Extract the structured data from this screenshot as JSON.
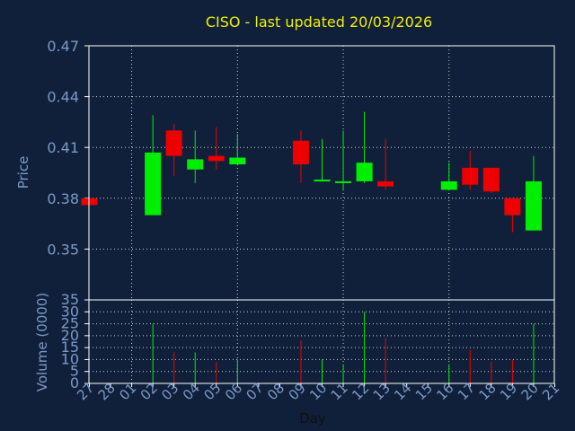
{
  "colors": {
    "background": "#10203a",
    "axis_text": "#7c9ac6",
    "title": "#f0f000",
    "frame": "#ffffff",
    "grid": "#d0d0d0",
    "up": "#00ee00",
    "down": "#ee0000",
    "xlabel": "#101010"
  },
  "chart_data": {
    "type": "candlestick",
    "title": "CISO - last updated 20/03/2026",
    "price_axis": {
      "label": "Price",
      "ylim": [
        0.32,
        0.47
      ],
      "ticks": [
        "0.47",
        "0.44",
        "0.41",
        "0.38",
        "0.35"
      ],
      "tick_values": [
        0.47,
        0.44,
        0.41,
        0.38,
        0.35
      ]
    },
    "volume_axis": {
      "label": "Volume (0000)",
      "ylim": [
        0,
        35
      ],
      "ticks": [
        "35",
        "30",
        "25",
        "20",
        "15",
        "10",
        "5",
        "0"
      ],
      "tick_values": [
        35,
        30,
        25,
        20,
        15,
        10,
        5,
        0
      ]
    },
    "xlabel": "Day",
    "x": [
      "27",
      "28",
      "01",
      "02",
      "03",
      "04",
      "05",
      "06",
      "07",
      "08",
      "09",
      "10",
      "11",
      "12",
      "13",
      "14",
      "15",
      "16",
      "17",
      "18",
      "19",
      "20",
      "21"
    ],
    "candles": [
      {
        "day": "27",
        "open": 0.38,
        "close": 0.376,
        "high": 0.38,
        "low": 0.376,
        "volume": 0
      },
      {
        "day": "02",
        "open": 0.37,
        "close": 0.407,
        "high": 0.429,
        "low": 0.37,
        "volume": 25
      },
      {
        "day": "03",
        "open": 0.42,
        "close": 0.405,
        "high": 0.424,
        "low": 0.393,
        "volume": 13
      },
      {
        "day": "04",
        "open": 0.397,
        "close": 0.403,
        "high": 0.42,
        "low": 0.389,
        "volume": 13
      },
      {
        "day": "05",
        "open": 0.405,
        "close": 0.402,
        "high": 0.422,
        "low": 0.397,
        "volume": 9
      },
      {
        "day": "06",
        "open": 0.4,
        "close": 0.404,
        "high": 0.418,
        "low": 0.4,
        "volume": 10
      },
      {
        "day": "09",
        "open": 0.414,
        "close": 0.4,
        "high": 0.42,
        "low": 0.389,
        "volume": 18
      },
      {
        "day": "10",
        "open": 0.39,
        "close": 0.391,
        "high": 0.415,
        "low": 0.39,
        "volume": 10
      },
      {
        "day": "11",
        "open": 0.389,
        "close": 0.39,
        "high": 0.42,
        "low": 0.385,
        "volume": 8
      },
      {
        "day": "12",
        "open": 0.39,
        "close": 0.401,
        "high": 0.431,
        "low": 0.389,
        "volume": 30
      },
      {
        "day": "13",
        "open": 0.39,
        "close": 0.387,
        "high": 0.415,
        "low": 0.385,
        "volume": 19
      },
      {
        "day": "16",
        "open": 0.385,
        "close": 0.39,
        "high": 0.401,
        "low": 0.385,
        "volume": 8
      },
      {
        "day": "17",
        "open": 0.398,
        "close": 0.388,
        "high": 0.408,
        "low": 0.385,
        "volume": 14
      },
      {
        "day": "18",
        "open": 0.398,
        "close": 0.384,
        "high": 0.398,
        "low": 0.383,
        "volume": 9
      },
      {
        "day": "19",
        "open": 0.38,
        "close": 0.37,
        "high": 0.38,
        "low": 0.36,
        "volume": 10
      },
      {
        "day": "20",
        "open": 0.361,
        "close": 0.39,
        "high": 0.405,
        "low": 0.361,
        "volume": 25
      }
    ],
    "grid": true,
    "grid_style": "dotted"
  }
}
